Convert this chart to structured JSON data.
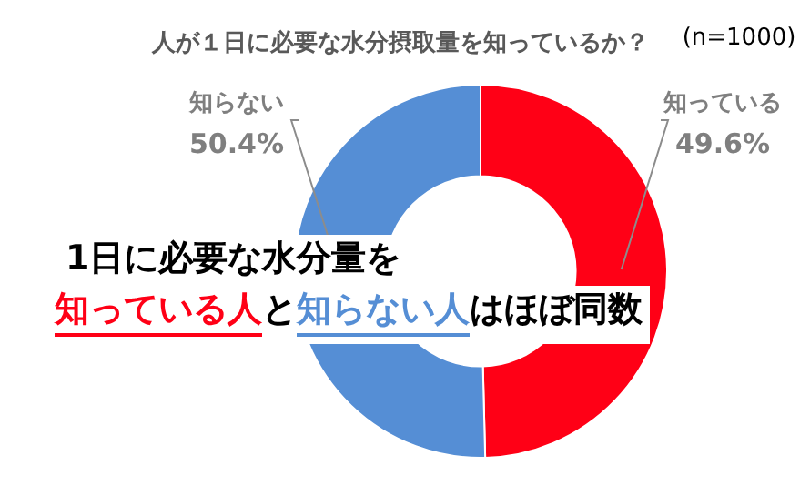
{
  "chart_data": {
    "type": "donut",
    "title": "人が１日に必要な水分摂取量を知っているか？",
    "categories": [
      "知っている",
      "知らない"
    ],
    "values": [
      49.6,
      50.4
    ],
    "value_labels": [
      "49.6%",
      "50.4%"
    ],
    "colors": [
      "#ff0016",
      "#558ed5"
    ],
    "annotations": [
      "(n=1000)",
      "1日に必要な水分量を",
      "知っている人",
      "と",
      "知らない人",
      "はほぼ同数"
    ],
    "legend": false
  }
}
